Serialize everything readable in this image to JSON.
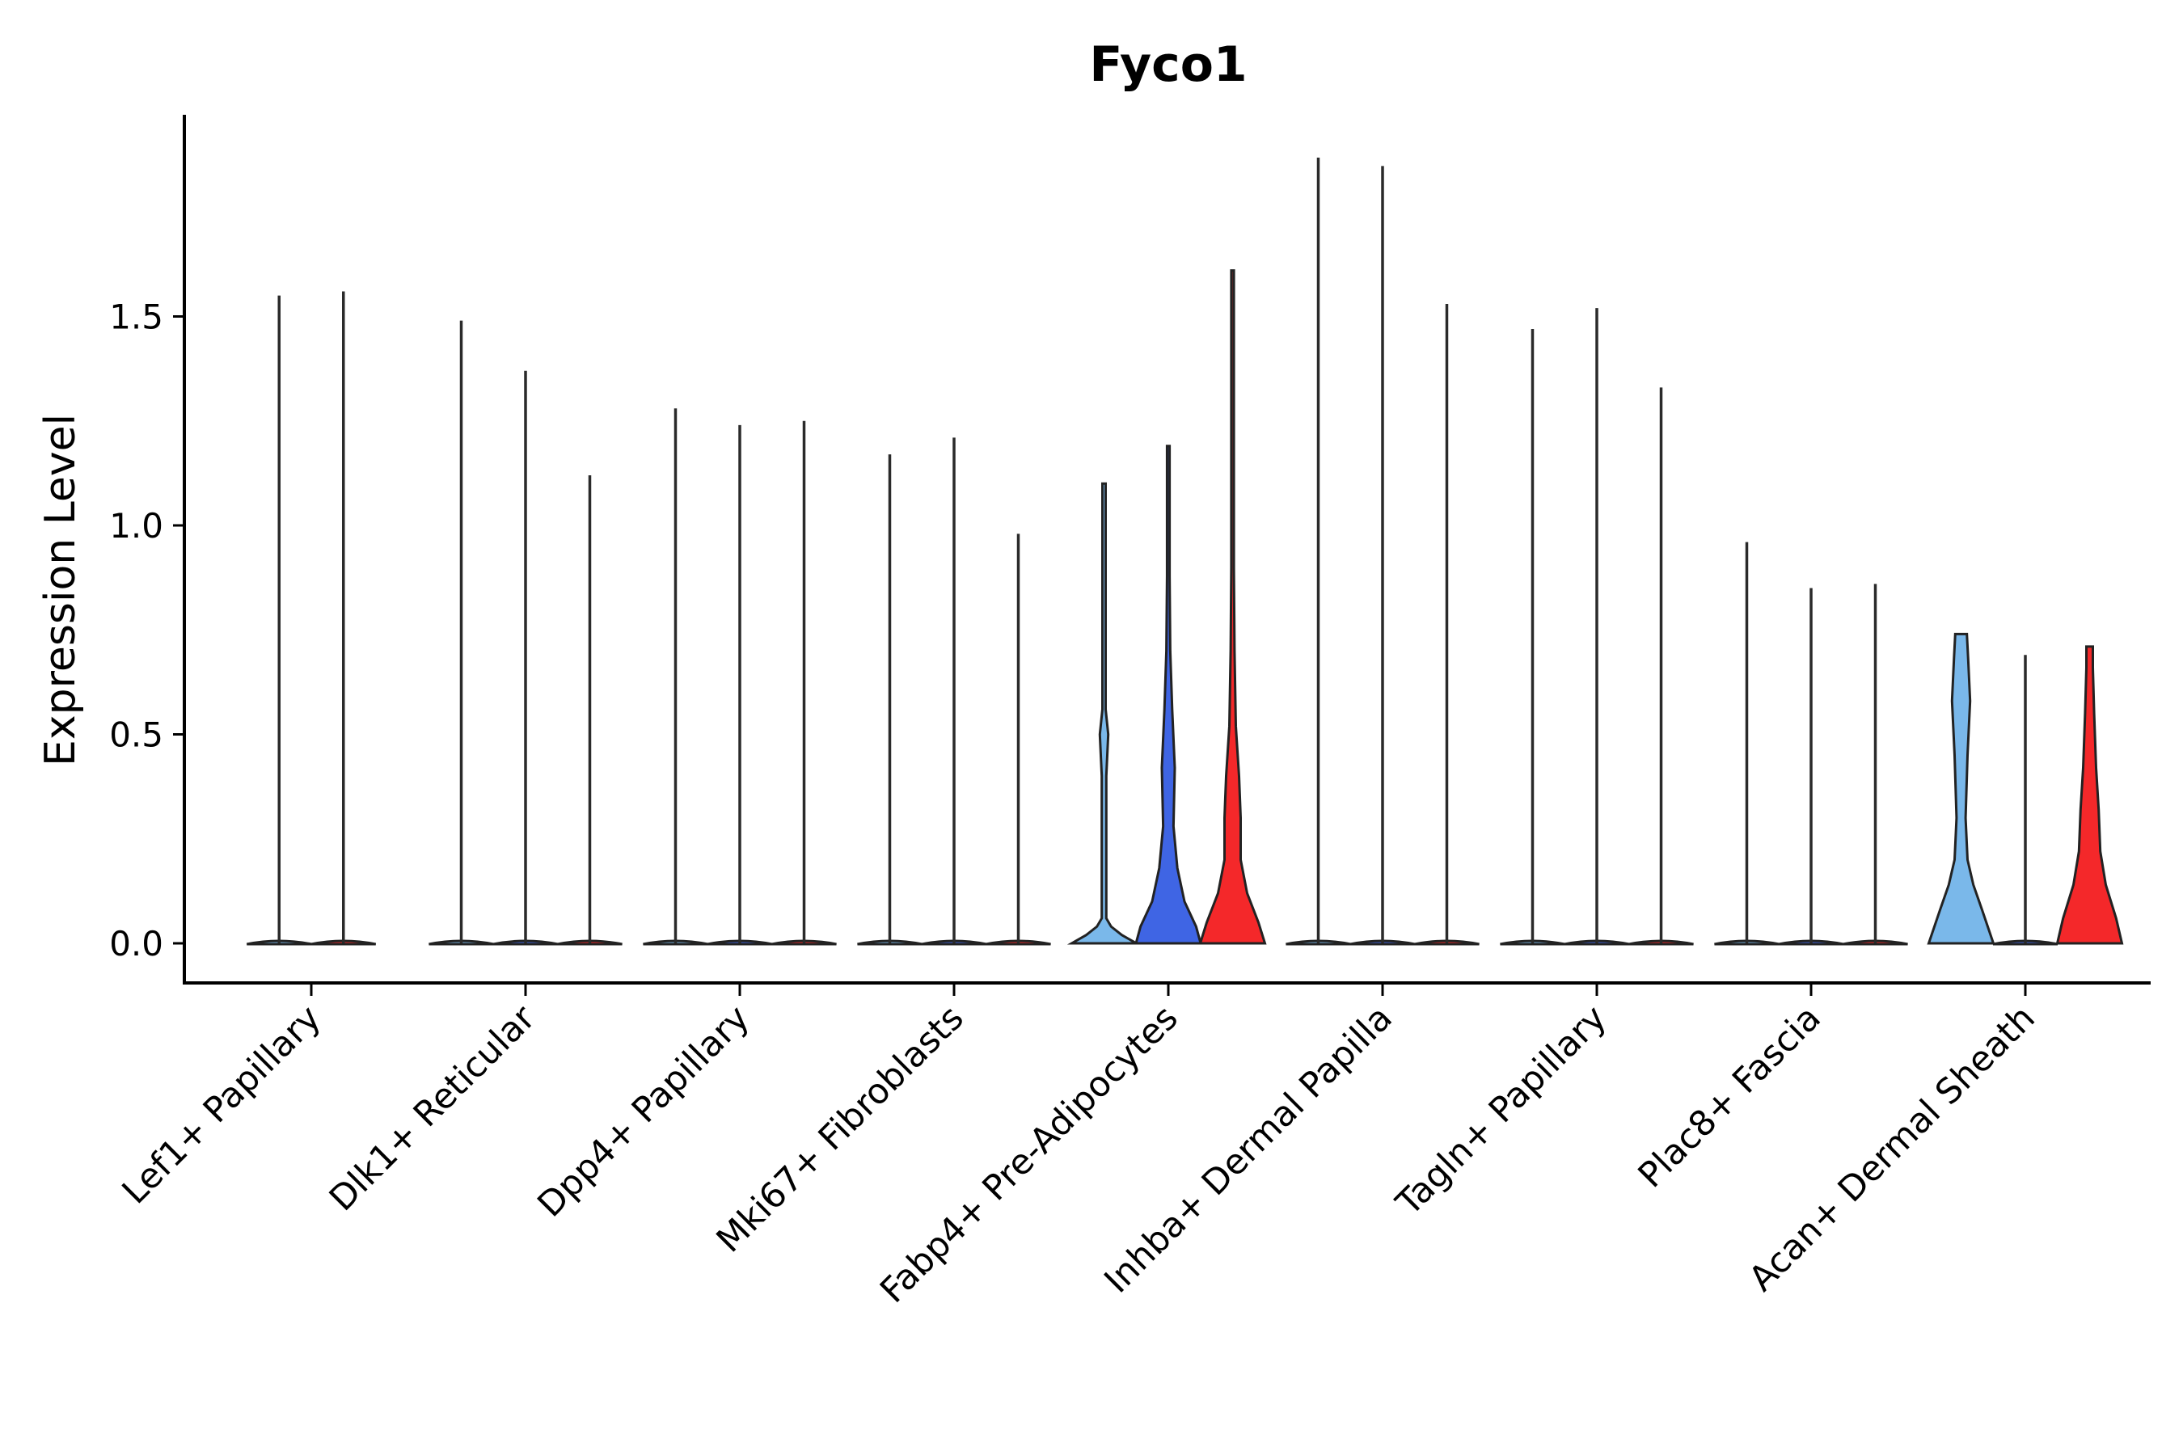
{
  "chart_data": {
    "type": "violin",
    "title": "Fyco1",
    "xlabel": "",
    "ylabel": "Expression Level",
    "ylim": [
      -0.1,
      1.97
    ],
    "yticks": [
      "0.0",
      "0.5",
      "1.0",
      "1.5"
    ],
    "ytick_values": [
      0,
      0.5,
      1.0,
      1.5
    ],
    "grid": false,
    "legend": "none",
    "series_colors": [
      "#7ab8ea",
      "#3f65e4",
      "#f4282a"
    ],
    "categories": [
      "Lef1+ Papillary",
      "Dlk1+ Reticular",
      "Dpp4+ Papillary",
      "Mki67+ Fibroblasts",
      "Fabp4+ Pre-Adipocytes",
      "Inhba+ Dermal Papilla",
      "Tagln+ Papillary",
      "Plac8+ Fascia",
      "Acan+ Dermal Sheath"
    ],
    "groups": [
      {
        "category": "Lef1+ Papillary",
        "violins": [
          {
            "max": 1.55,
            "shape": "flat"
          },
          {
            "max": 1.56,
            "shape": "flat"
          }
        ]
      },
      {
        "category": "Dlk1+ Reticular",
        "violins": [
          {
            "max": 1.49,
            "shape": "flat"
          },
          {
            "max": 1.37,
            "shape": "flat"
          },
          {
            "max": 1.12,
            "shape": "flat"
          }
        ]
      },
      {
        "category": "Dpp4+ Papillary",
        "violins": [
          {
            "max": 1.28,
            "shape": "flat"
          },
          {
            "max": 1.24,
            "shape": "flat"
          },
          {
            "max": 1.25,
            "shape": "flat"
          }
        ]
      },
      {
        "category": "Mki67+ Fibroblasts",
        "violins": [
          {
            "max": 1.17,
            "shape": "flat"
          },
          {
            "max": 1.21,
            "shape": "flat"
          },
          {
            "max": 0.98,
            "shape": "flat"
          }
        ]
      },
      {
        "category": "Fabp4+ Pre-Adipocytes",
        "violins": [
          {
            "max": 1.1,
            "shape": "small"
          },
          {
            "max": 1.19,
            "shape": "wide"
          },
          {
            "max": 1.61,
            "shape": "wide"
          }
        ]
      },
      {
        "category": "Inhba+ Dermal Papilla",
        "violins": [
          {
            "max": 1.88,
            "shape": "flat"
          },
          {
            "max": 1.86,
            "shape": "flat"
          },
          {
            "max": 1.53,
            "shape": "flat"
          }
        ]
      },
      {
        "category": "Tagln+ Papillary",
        "violins": [
          {
            "max": 1.47,
            "shape": "flat"
          },
          {
            "max": 1.52,
            "shape": "flat"
          },
          {
            "max": 1.33,
            "shape": "flat"
          }
        ]
      },
      {
        "category": "Plac8+ Fascia",
        "violins": [
          {
            "max": 0.96,
            "shape": "flat"
          },
          {
            "max": 0.85,
            "shape": "flat"
          },
          {
            "max": 0.86,
            "shape": "flat"
          }
        ]
      },
      {
        "category": "Acan+ Dermal Sheath",
        "violins": [
          {
            "max": 0.74,
            "shape": "wide"
          },
          {
            "max": 0.69,
            "shape": "flat"
          },
          {
            "max": 0.71,
            "shape": "wide"
          }
        ]
      }
    ]
  }
}
